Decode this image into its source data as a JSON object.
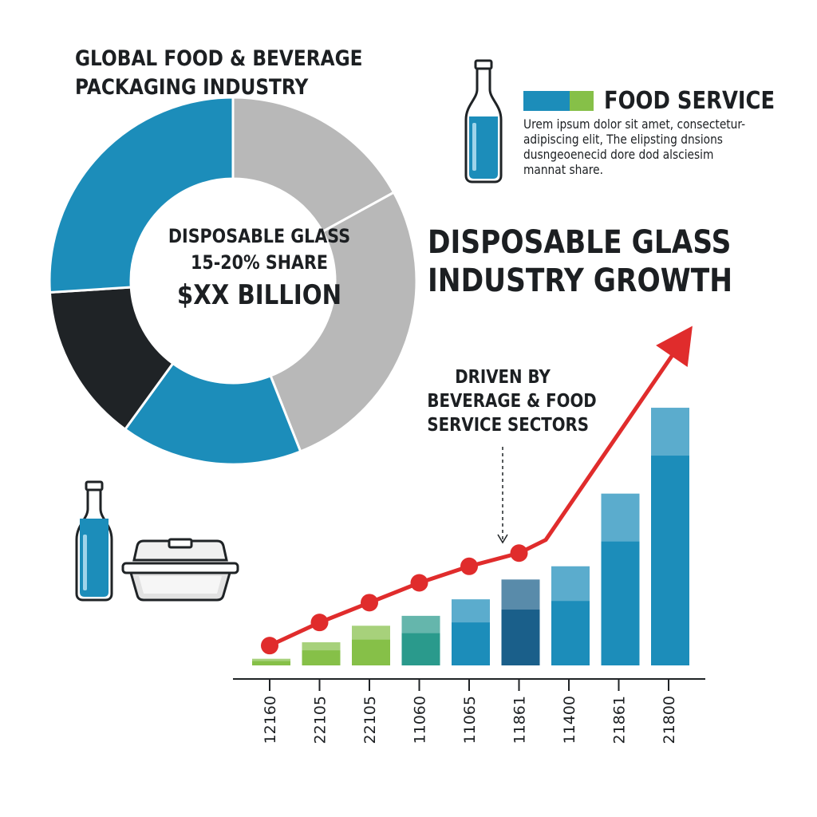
{
  "header": {
    "title_line1": "GLOBAL FOOD & BEVERAGE",
    "title_line2": "PACKAGING INDUSTRY"
  },
  "donut": {
    "center_line1": "DISPOSABLE GLASS",
    "center_line2": "15-20% SHARE",
    "center_line3": "$XX BILLION",
    "colors": [
      "#b8b8b8",
      "#1c8dba",
      "#1f2326",
      "#1c8dba",
      "#b8b8b8"
    ]
  },
  "legend": {
    "label": "FOOD SERVICE",
    "swatch_colors": [
      "#1c8dba",
      "#86c048"
    ],
    "desc_line1": "Urem ipsum dolor sit amet, consectetur-",
    "desc_line2": "adipiscing elit,   The elipsting dnsions",
    "desc_line3": "dusngeoenecid dore dod alsciesim",
    "desc_line4": "mannat share."
  },
  "growth": {
    "title_line1": "DISPOSABLE GLASS",
    "title_line2": "INDUSTRY GROWTH",
    "annotation_line1": "DRIVEN BY",
    "annotation_line2": "BEVERAGE & FOOD",
    "annotation_line3": "SERVICE SECTORS"
  },
  "icons": [
    "bottle-icon",
    "bottle-icon",
    "food-container-icon"
  ],
  "chart_data": [
    {
      "type": "pie",
      "title": "GLOBAL FOOD & BEVERAGE PACKAGING INDUSTRY",
      "slices": [
        {
          "value": 17,
          "color": "#b8b8b8"
        },
        {
          "value": 27,
          "color": "#b8b8b8"
        },
        {
          "value": 16,
          "color": "#1c8dba"
        },
        {
          "value": 14,
          "color": "#1f2326"
        },
        {
          "value": 26,
          "color": "#1c8dba"
        }
      ]
    },
    {
      "type": "bar",
      "title": "DISPOSABLE GLASS INDUSTRY GROWTH",
      "categories": [
        "12160",
        "22105",
        "22105",
        "11060",
        "11065",
        "11861",
        "11400",
        "21861",
        "21800"
      ],
      "values": [
        2,
        7,
        12,
        15,
        20,
        26,
        30,
        52,
        78
      ],
      "bar_colors": [
        "#86c048",
        "#86c048",
        "#86c048",
        "#2a9a8c",
        "#1c8dba",
        "#1a5f8a",
        "#1c8dba",
        "#1c8dba",
        "#1c8dba"
      ],
      "trend_line": [
        6,
        13,
        19,
        25,
        30,
        34,
        38,
        62,
        100
      ],
      "trend_color": "#e02c2c",
      "ylim": [
        0,
        100
      ],
      "grid": false
    }
  ]
}
